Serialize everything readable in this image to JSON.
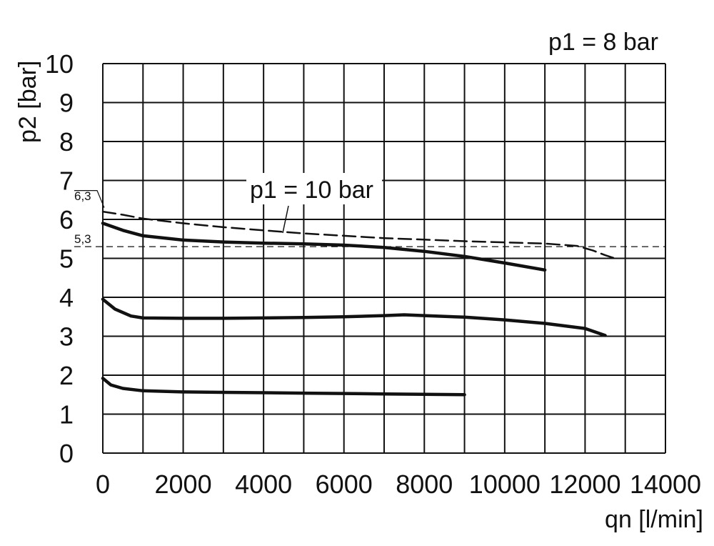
{
  "chart_data": {
    "type": "line",
    "xlabel": "qn [l/min]",
    "ylabel": "p2 [bar]",
    "xlim": [
      0,
      14000
    ],
    "ylim": [
      0,
      10
    ],
    "x_ticks": [
      "0",
      "2000",
      "4000",
      "6000",
      "8000",
      "10000",
      "12000",
      "14000"
    ],
    "y_ticks": [
      "0",
      "1",
      "2",
      "3",
      "4",
      "5",
      "6",
      "7",
      "8",
      "9",
      "10"
    ],
    "grid": true,
    "annotations": [
      {
        "text": "p1 = 8 bar"
      },
      {
        "text": "p1 = 10 bar"
      },
      {
        "text": "6,3"
      },
      {
        "text": "5,3"
      }
    ],
    "reference_lines": [
      {
        "y": 6.3,
        "label": "6,3"
      },
      {
        "y": 5.3,
        "label": "5,3"
      }
    ],
    "series": [
      {
        "style": "dashed",
        "x": [
          0,
          500,
          1000,
          2000,
          3000,
          4000,
          5000,
          6000,
          7000,
          8000,
          9000,
          10000,
          11000,
          11800,
          12200,
          12500,
          12800
        ],
        "y": [
          6.2,
          6.12,
          6.02,
          5.9,
          5.8,
          5.72,
          5.64,
          5.58,
          5.52,
          5.48,
          5.44,
          5.41,
          5.38,
          5.32,
          5.2,
          5.08,
          4.98
        ]
      },
      {
        "style": "solid",
        "x": [
          0,
          500,
          1000,
          2000,
          3000,
          4000,
          5000,
          6000,
          7000,
          8000,
          9000,
          10000,
          11000
        ],
        "y": [
          5.9,
          5.72,
          5.58,
          5.47,
          5.42,
          5.39,
          5.37,
          5.34,
          5.28,
          5.18,
          5.05,
          4.88,
          4.7
        ]
      },
      {
        "style": "solid",
        "x": [
          0,
          300,
          700,
          1000,
          2000,
          3000,
          4000,
          5000,
          6000,
          7000,
          7500,
          8000,
          9000,
          10000,
          11000,
          12000,
          12500
        ],
        "y": [
          3.95,
          3.7,
          3.52,
          3.47,
          3.46,
          3.46,
          3.47,
          3.48,
          3.5,
          3.53,
          3.55,
          3.53,
          3.49,
          3.42,
          3.33,
          3.2,
          3.02
        ]
      },
      {
        "style": "solid",
        "x": [
          0,
          200,
          500,
          1000,
          2000,
          3000,
          4000,
          5000,
          6000,
          7000,
          8000,
          9000
        ],
        "y": [
          1.92,
          1.75,
          1.66,
          1.6,
          1.57,
          1.56,
          1.55,
          1.54,
          1.53,
          1.52,
          1.51,
          1.5
        ]
      }
    ]
  }
}
